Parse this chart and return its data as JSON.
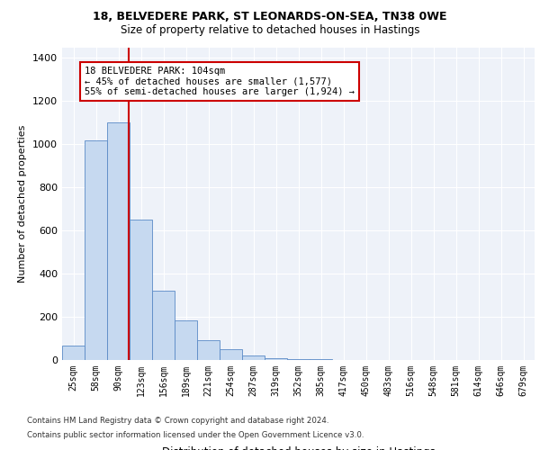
{
  "title1": "18, BELVEDERE PARK, ST LEONARDS-ON-SEA, TN38 0WE",
  "title2": "Size of property relative to detached houses in Hastings",
  "xlabel": "Distribution of detached houses by size in Hastings",
  "ylabel": "Number of detached properties",
  "bin_labels": [
    "25sqm",
    "58sqm",
    "90sqm",
    "123sqm",
    "156sqm",
    "189sqm",
    "221sqm",
    "254sqm",
    "287sqm",
    "319sqm",
    "352sqm",
    "385sqm",
    "417sqm",
    "450sqm",
    "483sqm",
    "516sqm",
    "548sqm",
    "581sqm",
    "614sqm",
    "646sqm",
    "679sqm"
  ],
  "bar_values": [
    65,
    1020,
    1100,
    650,
    320,
    185,
    90,
    50,
    20,
    10,
    5,
    3,
    2,
    1,
    1,
    1,
    0,
    0,
    0,
    0,
    0
  ],
  "bar_color": "#c6d9f0",
  "bar_edge_color": "#5a8ac6",
  "red_line_color": "#cc0000",
  "red_line_x": 2.45,
  "ylim": [
    0,
    1450
  ],
  "yticks": [
    0,
    200,
    400,
    600,
    800,
    1000,
    1200,
    1400
  ],
  "annotation_text": "18 BELVEDERE PARK: 104sqm\n← 45% of detached houses are smaller (1,577)\n55% of semi-detached houses are larger (1,924) →",
  "annotation_box_color": "#ffffff",
  "annotation_box_edge": "#cc0000",
  "footer1": "Contains HM Land Registry data © Crown copyright and database right 2024.",
  "footer2": "Contains public sector information licensed under the Open Government Licence v3.0.",
  "background_color": "#eef2f9"
}
